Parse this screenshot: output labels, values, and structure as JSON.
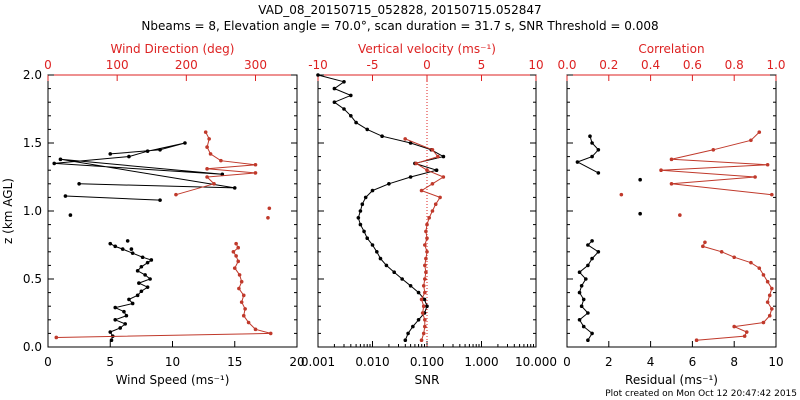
{
  "title_line1": "VAD_08_20150715_052828, 20150715.052847",
  "title_line2": "Nbeams = 8, Elevation angle = 70.0°, scan duration = 31.7 s, SNR Threshold = 0.008",
  "footer": "Plot created on Mon Oct 12 20:47:42 2015",
  "colors": {
    "black": "#000000",
    "red": "#c0392b",
    "axis_red": "#dd2222"
  },
  "chart_data": [
    {
      "panel": "wind",
      "type": "line",
      "ylabel": "z (km AGL)",
      "ylim": [
        0,
        2
      ],
      "yticks": [
        "0.0",
        "0.5",
        "1.0",
        "1.5",
        "2.0"
      ],
      "bottom_axis": {
        "label": "Wind Speed (ms⁻¹)",
        "range": [
          0,
          20
        ],
        "ticks": [
          "0",
          "5",
          "10",
          "15",
          "20"
        ]
      },
      "top_axis": {
        "label": "Wind Direction (deg)",
        "range": [
          0,
          360
        ],
        "ticks": [
          "0",
          "100",
          "200",
          "300"
        ]
      },
      "series": [
        {
          "name": "Wind Speed",
          "axis": "bottom",
          "color": "#000000",
          "points": [
            [
              5.1,
              0.05
            ],
            [
              5.2,
              0.08
            ],
            [
              5.0,
              0.11
            ],
            [
              5.8,
              0.14
            ],
            [
              6.2,
              0.17
            ],
            [
              5.4,
              0.2
            ],
            [
              6.3,
              0.23
            ],
            [
              6.1,
              0.26
            ],
            [
              5.4,
              0.29
            ],
            [
              6.8,
              0.32
            ],
            [
              6.5,
              0.35
            ],
            [
              7.2,
              0.38
            ],
            [
              7.5,
              0.41
            ],
            [
              8.0,
              0.44
            ],
            [
              7.3,
              0.47
            ],
            [
              8.2,
              0.5
            ],
            [
              7.8,
              0.53
            ],
            [
              7.2,
              0.56
            ],
            [
              7.5,
              0.59
            ],
            [
              8.0,
              0.62
            ],
            [
              8.3,
              0.64
            ],
            [
              7.6,
              0.66
            ],
            [
              6.8,
              0.69
            ],
            [
              6.0,
              0.72
            ],
            [
              5.4,
              0.74
            ],
            [
              5.0,
              0.76
            ]
          ],
          "gaps": [
            [
              1.4,
              1.11
            ],
            [
              9.0,
              1.08
            ]
          ]
        },
        {
          "name": "Wind Speed upper",
          "axis": "bottom",
          "color": "#000000",
          "points": [
            [
              2.5,
              1.2
            ],
            [
              15.0,
              1.17
            ],
            [
              1.0,
              1.38
            ],
            [
              14.0,
              1.27
            ],
            [
              0.5,
              1.35
            ],
            [
              6.5,
              1.4
            ],
            [
              8.0,
              1.44
            ],
            [
              11.0,
              1.5
            ],
            [
              9.0,
              1.45
            ],
            [
              5.0,
              1.42
            ]
          ]
        },
        {
          "name": "Wind Speed scatter",
          "axis": "bottom",
          "color": "#000000",
          "points": [
            [
              1.8,
              0.97
            ],
            [
              6.4,
              0.78
            ],
            [
              6.7,
              0.72
            ]
          ]
        },
        {
          "name": "Wind Direction",
          "axis": "top",
          "color": "#c0392b",
          "points": [
            [
              12,
              0.07
            ],
            [
              322,
              0.1
            ],
            [
              300,
              0.13
            ],
            [
              290,
              0.18
            ],
            [
              283,
              0.23
            ],
            [
              285,
              0.28
            ],
            [
              280,
              0.33
            ],
            [
              283,
              0.38
            ],
            [
              276,
              0.43
            ],
            [
              280,
              0.48
            ],
            [
              277,
              0.53
            ],
            [
              270,
              0.58
            ],
            [
              275,
              0.63
            ],
            [
              272,
              0.67
            ],
            [
              268,
              0.7
            ],
            [
              275,
              0.73
            ],
            [
              272,
              0.76
            ]
          ],
          "extra": [
            [
              318,
              0.95
            ],
            [
              320,
              1.02
            ],
            [
              185,
              1.12
            ],
            [
              240,
              1.2
            ],
            [
              230,
              1.25
            ],
            [
              300,
              1.28
            ],
            [
              230,
              1.31
            ],
            [
              300,
              1.34
            ],
            [
              250,
              1.37
            ],
            [
              235,
              1.42
            ],
            [
              230,
              1.47
            ],
            [
              233,
              1.53
            ],
            [
              228,
              1.58
            ]
          ]
        }
      ]
    },
    {
      "panel": "vertical",
      "type": "line",
      "ylim": [
        0,
        2
      ],
      "bottom_axis": {
        "label": "SNR",
        "scale": "log",
        "range": [
          0.001,
          10
        ],
        "ticks": [
          "0.001",
          "0.010",
          "0.100",
          "1.000",
          "10.000"
        ]
      },
      "top_axis": {
        "label": "Vertical velocity (ms⁻¹)",
        "range": [
          -10,
          10
        ],
        "ticks": [
          "-10",
          "-5",
          "0",
          "5",
          "10"
        ]
      },
      "series": [
        {
          "name": "SNR",
          "axis": "bottom",
          "color": "#000000",
          "points": [
            [
              0.04,
              0.05
            ],
            [
              0.045,
              0.1
            ],
            [
              0.055,
              0.15
            ],
            [
              0.07,
              0.2
            ],
            [
              0.09,
              0.25
            ],
            [
              0.1,
              0.3
            ],
            [
              0.09,
              0.35
            ],
            [
              0.07,
              0.4
            ],
            [
              0.05,
              0.45
            ],
            [
              0.035,
              0.5
            ],
            [
              0.025,
              0.55
            ],
            [
              0.018,
              0.6
            ],
            [
              0.014,
              0.65
            ],
            [
              0.012,
              0.7
            ],
            [
              0.01,
              0.75
            ],
            [
              0.008,
              0.8
            ],
            [
              0.007,
              0.85
            ],
            [
              0.006,
              0.9
            ],
            [
              0.0055,
              0.95
            ],
            [
              0.006,
              1.0
            ],
            [
              0.0065,
              1.05
            ],
            [
              0.0075,
              1.1
            ],
            [
              0.01,
              1.15
            ],
            [
              0.02,
              1.2
            ],
            [
              0.05,
              1.25
            ],
            [
              0.15,
              1.3
            ],
            [
              0.06,
              1.35
            ],
            [
              0.2,
              1.4
            ],
            [
              0.12,
              1.45
            ],
            [
              0.05,
              1.5
            ],
            [
              0.015,
              1.55
            ],
            [
              0.008,
              1.6
            ],
            [
              0.005,
              1.65
            ],
            [
              0.004,
              1.7
            ],
            [
              0.003,
              1.75
            ],
            [
              0.002,
              1.8
            ],
            [
              0.004,
              1.85
            ],
            [
              0.002,
              1.9
            ],
            [
              0.003,
              1.95
            ],
            [
              0.001,
              2.0
            ]
          ]
        },
        {
          "name": "Vertical velocity",
          "axis": "top",
          "color": "#c0392b",
          "points": [
            [
              -0.5,
              0.05
            ],
            [
              -0.3,
              0.1
            ],
            [
              -0.2,
              0.15
            ],
            [
              -0.2,
              0.2
            ],
            [
              -0.4,
              0.25
            ],
            [
              -0.3,
              0.3
            ],
            [
              -0.5,
              0.35
            ],
            [
              -0.2,
              0.4
            ],
            [
              -0.3,
              0.45
            ],
            [
              -0.2,
              0.5
            ],
            [
              -0.1,
              0.55
            ],
            [
              -0.2,
              0.6
            ],
            [
              -0.1,
              0.65
            ],
            [
              0.0,
              0.7
            ],
            [
              -0.2,
              0.75
            ],
            [
              0.0,
              0.8
            ],
            [
              -0.1,
              0.85
            ],
            [
              0.0,
              0.9
            ],
            [
              0.2,
              0.95
            ],
            [
              0.5,
              1.0
            ],
            [
              0.8,
              1.05
            ],
            [
              1.2,
              1.1
            ],
            [
              -0.5,
              1.15
            ],
            [
              0.5,
              1.2
            ],
            [
              1.5,
              1.25
            ],
            [
              0.0,
              1.3
            ],
            [
              -1.0,
              1.35
            ],
            [
              1.0,
              1.4
            ],
            [
              0.5,
              1.45
            ],
            [
              -2.0,
              1.53
            ]
          ]
        }
      ],
      "reference_line": {
        "axis": "top",
        "value": 0
      }
    },
    {
      "panel": "residual",
      "type": "line",
      "ylim": [
        0,
        2
      ],
      "bottom_axis": {
        "label": "Residual (ms⁻¹)",
        "range": [
          0,
          10
        ],
        "ticks": [
          "0",
          "2",
          "4",
          "6",
          "8",
          "10"
        ]
      },
      "top_axis": {
        "label": "Correlation",
        "range": [
          0,
          1
        ],
        "ticks": [
          "0.0",
          "0.2",
          "0.4",
          "0.6",
          "0.8",
          "1.0"
        ]
      },
      "series": [
        {
          "name": "Residual",
          "axis": "bottom",
          "color": "#000000",
          "points": [
            [
              1.0,
              0.05
            ],
            [
              1.2,
              0.1
            ],
            [
              0.8,
              0.15
            ],
            [
              0.6,
              0.2
            ],
            [
              1.0,
              0.25
            ],
            [
              0.7,
              0.3
            ],
            [
              0.8,
              0.35
            ],
            [
              0.6,
              0.4
            ],
            [
              0.7,
              0.45
            ],
            [
              0.9,
              0.5
            ],
            [
              0.6,
              0.55
            ],
            [
              1.0,
              0.6
            ],
            [
              1.2,
              0.65
            ],
            [
              1.5,
              0.7
            ],
            [
              1.0,
              0.75
            ],
            [
              1.2,
              0.78
            ]
          ],
          "extra": [
            [
              3.5,
              0.98
            ],
            [
              3.5,
              1.23
            ],
            [
              1.5,
              1.28
            ],
            [
              0.5,
              1.36
            ],
            [
              1.2,
              1.4
            ],
            [
              1.5,
              1.45
            ],
            [
              1.2,
              1.5
            ],
            [
              1.1,
              1.55
            ]
          ]
        },
        {
          "name": "Correlation",
          "axis": "top",
          "color": "#c0392b",
          "points": [
            [
              0.62,
              0.05
            ],
            [
              0.85,
              0.08
            ],
            [
              0.86,
              0.11
            ],
            [
              0.8,
              0.15
            ],
            [
              0.94,
              0.18
            ],
            [
              0.97,
              0.23
            ],
            [
              0.98,
              0.28
            ],
            [
              0.96,
              0.33
            ],
            [
              0.97,
              0.38
            ],
            [
              0.98,
              0.43
            ],
            [
              0.96,
              0.48
            ],
            [
              0.94,
              0.53
            ],
            [
              0.92,
              0.58
            ],
            [
              0.88,
              0.62
            ],
            [
              0.8,
              0.66
            ],
            [
              0.74,
              0.7
            ],
            [
              0.65,
              0.74
            ],
            [
              0.66,
              0.77
            ]
          ],
          "extra": [
            [
              0.54,
              0.97
            ],
            [
              0.26,
              1.12
            ],
            [
              0.98,
              1.12
            ],
            [
              0.5,
              1.2
            ],
            [
              0.9,
              1.25
            ],
            [
              0.45,
              1.3
            ],
            [
              0.96,
              1.34
            ],
            [
              0.5,
              1.38
            ],
            [
              0.7,
              1.45
            ],
            [
              0.88,
              1.52
            ],
            [
              0.92,
              1.58
            ]
          ]
        }
      ]
    }
  ]
}
